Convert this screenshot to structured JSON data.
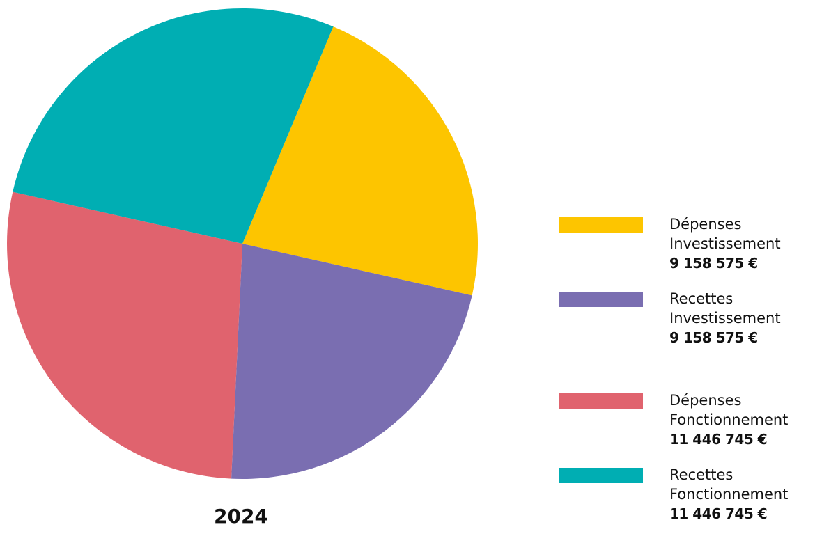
{
  "chart_data": {
    "type": "pie",
    "title": "",
    "caption": "2024",
    "legend_position": "right",
    "slices": [
      {
        "label_line1": "Dépenses",
        "label_line2": "Investissement",
        "value": 9158575,
        "value_label": "9 158 575 €",
        "color": "#FDC500"
      },
      {
        "label_line1": "Recettes",
        "label_line2": "Investissement",
        "value": 9158575,
        "value_label": "9 158 575 €",
        "color": "#7A6EB1"
      },
      {
        "label_line1": "Dépenses",
        "label_line2": "Fonctionnement",
        "value": 11446745,
        "value_label": "11 446 745 €",
        "color": "#E0636E"
      },
      {
        "label_line1": "Recettes",
        "label_line2": "Fonctionnement",
        "value": 11446745,
        "value_label": "11 446 745 €",
        "color": "#00AEB3"
      }
    ]
  }
}
